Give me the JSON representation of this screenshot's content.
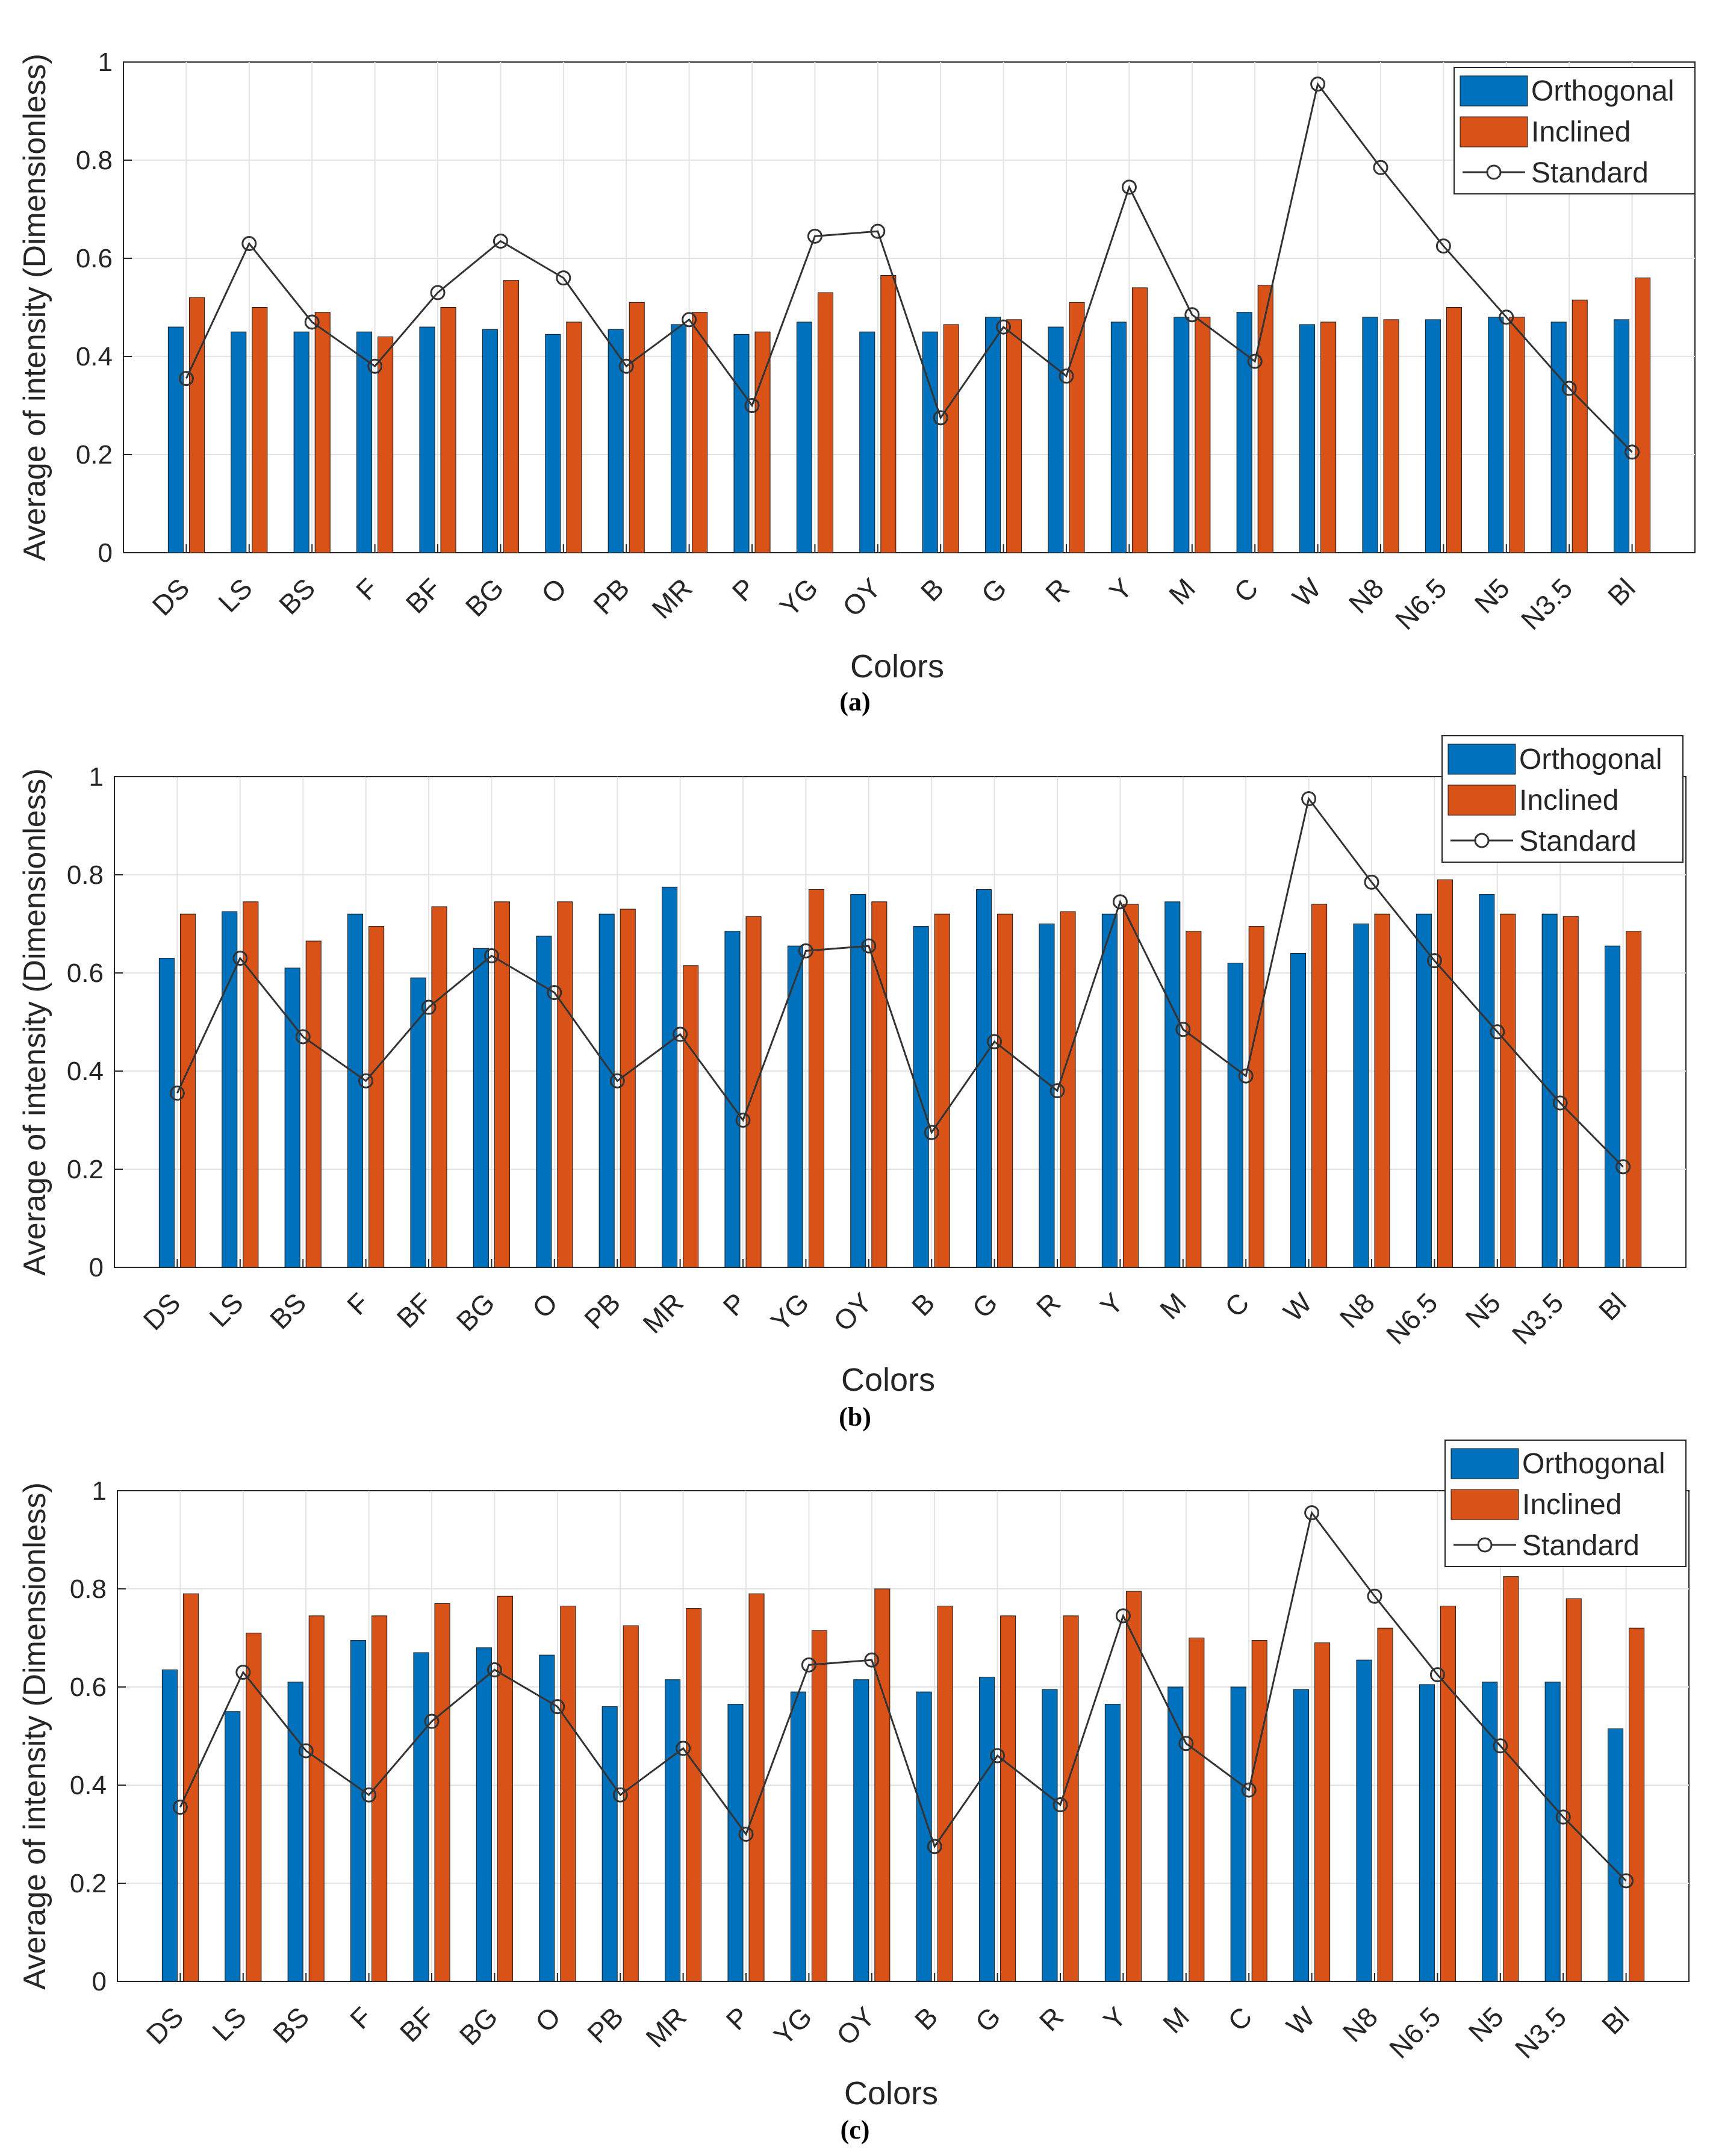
{
  "series_colors": {
    "Orthogonal": "#0072BD",
    "Inclined": "#D95319",
    "Standard": "#333333"
  },
  "chart_data": [
    {
      "type": "bar",
      "panel_label": "(a)",
      "xlabel": "Colors",
      "ylabel": "Average of intensity (Dimensionless)",
      "ylim": [
        0,
        1
      ],
      "yticks": [
        "0",
        "0.2",
        "0.4",
        "0.6",
        "0.8",
        "1"
      ],
      "grid": true,
      "legend_position": "top-right",
      "categories": [
        "DS",
        "LS",
        "BS",
        "F",
        "BF",
        "BG",
        "O",
        "PB",
        "MR",
        "P",
        "YG",
        "OY",
        "B",
        "G",
        "R",
        "Y",
        "M",
        "C",
        "W",
        "N8",
        "N6.5",
        "N5",
        "N3.5",
        "Bl"
      ],
      "series": [
        {
          "name": "Orthogonal",
          "kind": "bar",
          "values": [
            0.46,
            0.45,
            0.45,
            0.45,
            0.46,
            0.455,
            0.445,
            0.455,
            0.465,
            0.445,
            0.47,
            0.45,
            0.45,
            0.48,
            0.46,
            0.47,
            0.48,
            0.49,
            0.465,
            0.48,
            0.475,
            0.48,
            0.47,
            0.475
          ]
        },
        {
          "name": "Inclined",
          "kind": "bar",
          "values": [
            0.52,
            0.5,
            0.49,
            0.44,
            0.5,
            0.555,
            0.47,
            0.51,
            0.49,
            0.45,
            0.53,
            0.565,
            0.465,
            0.475,
            0.51,
            0.54,
            0.48,
            0.545,
            0.47,
            0.475,
            0.5,
            0.48,
            0.515,
            0.56
          ]
        },
        {
          "name": "Standard",
          "kind": "line",
          "values": [
            0.355,
            0.63,
            0.47,
            0.38,
            0.53,
            0.635,
            0.56,
            0.38,
            0.475,
            0.3,
            0.645,
            0.655,
            0.275,
            0.46,
            0.36,
            0.745,
            0.485,
            0.39,
            0.955,
            0.785,
            0.625,
            0.48,
            0.335,
            0.205
          ]
        }
      ]
    },
    {
      "type": "bar",
      "panel_label": "(b)",
      "xlabel": "Colors",
      "ylabel": "Average of intensity (Dimensionless)",
      "ylim": [
        0,
        1
      ],
      "yticks": [
        "0",
        "0.2",
        "0.4",
        "0.6",
        "0.8",
        "1"
      ],
      "grid": true,
      "legend_position": "top-right",
      "categories": [
        "DS",
        "LS",
        "BS",
        "F",
        "BF",
        "BG",
        "O",
        "PB",
        "MR",
        "P",
        "YG",
        "OY",
        "B",
        "G",
        "R",
        "Y",
        "M",
        "C",
        "W",
        "N8",
        "N6.5",
        "N5",
        "N3.5",
        "Bl"
      ],
      "series": [
        {
          "name": "Orthogonal",
          "kind": "bar",
          "values": [
            0.63,
            0.725,
            0.61,
            0.72,
            0.59,
            0.65,
            0.675,
            0.72,
            0.775,
            0.685,
            0.655,
            0.76,
            0.695,
            0.77,
            0.7,
            0.72,
            0.745,
            0.62,
            0.64,
            0.7,
            0.72,
            0.76,
            0.72,
            0.655
          ]
        },
        {
          "name": "Inclined",
          "kind": "bar",
          "values": [
            0.72,
            0.745,
            0.665,
            0.695,
            0.735,
            0.745,
            0.745,
            0.73,
            0.615,
            0.715,
            0.77,
            0.745,
            0.72,
            0.72,
            0.725,
            0.74,
            0.685,
            0.695,
            0.74,
            0.72,
            0.79,
            0.72,
            0.715,
            0.685
          ]
        },
        {
          "name": "Standard",
          "kind": "line",
          "values": [
            0.355,
            0.63,
            0.47,
            0.38,
            0.53,
            0.635,
            0.56,
            0.38,
            0.475,
            0.3,
            0.645,
            0.655,
            0.275,
            0.46,
            0.36,
            0.745,
            0.485,
            0.39,
            0.955,
            0.785,
            0.625,
            0.48,
            0.335,
            0.205
          ]
        }
      ]
    },
    {
      "type": "bar",
      "panel_label": "(c)",
      "xlabel": "Colors",
      "ylabel": "Average of intensity (Dimensionless)",
      "ylim": [
        0,
        1
      ],
      "yticks": [
        "0",
        "0.2",
        "0.4",
        "0.6",
        "0.8",
        "1"
      ],
      "grid": true,
      "legend_position": "top-right",
      "categories": [
        "DS",
        "LS",
        "BS",
        "F",
        "BF",
        "BG",
        "O",
        "PB",
        "MR",
        "P",
        "YG",
        "OY",
        "B",
        "G",
        "R",
        "Y",
        "M",
        "C",
        "W",
        "N8",
        "N6.5",
        "N5",
        "N3.5",
        "Bl"
      ],
      "series": [
        {
          "name": "Orthogonal",
          "kind": "bar",
          "values": [
            0.635,
            0.55,
            0.61,
            0.695,
            0.67,
            0.68,
            0.665,
            0.56,
            0.615,
            0.565,
            0.59,
            0.615,
            0.59,
            0.62,
            0.595,
            0.565,
            0.6,
            0.6,
            0.595,
            0.655,
            0.605,
            0.61,
            0.61,
            0.515
          ]
        },
        {
          "name": "Inclined",
          "kind": "bar",
          "values": [
            0.79,
            0.71,
            0.745,
            0.745,
            0.77,
            0.785,
            0.765,
            0.725,
            0.76,
            0.79,
            0.715,
            0.8,
            0.765,
            0.745,
            0.745,
            0.795,
            0.7,
            0.695,
            0.69,
            0.72,
            0.765,
            0.825,
            0.78,
            0.72
          ]
        },
        {
          "name": "Standard",
          "kind": "line",
          "values": [
            0.355,
            0.63,
            0.47,
            0.38,
            0.53,
            0.635,
            0.56,
            0.38,
            0.475,
            0.3,
            0.645,
            0.655,
            0.275,
            0.46,
            0.36,
            0.745,
            0.485,
            0.39,
            0.955,
            0.785,
            0.625,
            0.48,
            0.335,
            0.205
          ]
        }
      ]
    }
  ]
}
